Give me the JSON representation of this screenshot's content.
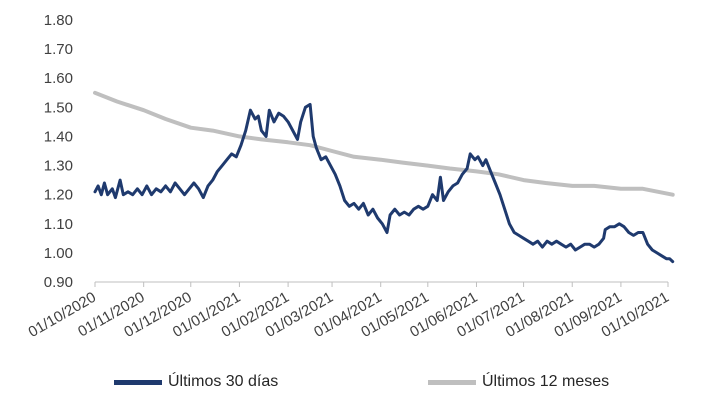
{
  "chart_data": {
    "type": "line",
    "title": "",
    "xlabel": "",
    "ylabel": "",
    "ylim": [
      0.9,
      1.8
    ],
    "yticks": [
      "0.90",
      "1.00",
      "1.10",
      "1.20",
      "1.30",
      "1.40",
      "1.50",
      "1.60",
      "1.70",
      "1.80"
    ],
    "xlim": [
      "01/10/2020",
      "01/10/2021"
    ],
    "xticks": [
      "01/10/2020",
      "01/11/2020",
      "01/12/2020",
      "01/01/2021",
      "01/02/2021",
      "01/03/2021",
      "01/04/2021",
      "01/05/2021",
      "01/06/2021",
      "01/07/2021",
      "01/08/2021",
      "01/09/2021",
      "01/10/2021"
    ],
    "grid": false,
    "legend_position": "bottom",
    "series": [
      {
        "name": "Últimos 30 días",
        "color": "#1f3a6e",
        "points": [
          [
            "01/10/2020",
            1.21
          ],
          [
            "03/10/2020",
            1.23
          ],
          [
            "05/10/2020",
            1.2
          ],
          [
            "07/10/2020",
            1.24
          ],
          [
            "09/10/2020",
            1.2
          ],
          [
            "12/10/2020",
            1.22
          ],
          [
            "14/10/2020",
            1.19
          ],
          [
            "17/10/2020",
            1.25
          ],
          [
            "19/10/2020",
            1.2
          ],
          [
            "22/10/2020",
            1.21
          ],
          [
            "25/10/2020",
            1.2
          ],
          [
            "28/10/2020",
            1.22
          ],
          [
            "31/10/2020",
            1.2
          ],
          [
            "03/11/2020",
            1.23
          ],
          [
            "06/11/2020",
            1.2
          ],
          [
            "09/11/2020",
            1.22
          ],
          [
            "12/11/2020",
            1.21
          ],
          [
            "15/11/2020",
            1.23
          ],
          [
            "18/11/2020",
            1.21
          ],
          [
            "21/11/2020",
            1.24
          ],
          [
            "24/11/2020",
            1.22
          ],
          [
            "27/11/2020",
            1.2
          ],
          [
            "30/11/2020",
            1.22
          ],
          [
            "03/12/2020",
            1.24
          ],
          [
            "06/12/2020",
            1.22
          ],
          [
            "09/12/2020",
            1.19
          ],
          [
            "12/12/2020",
            1.23
          ],
          [
            "15/12/2020",
            1.25
          ],
          [
            "18/12/2020",
            1.28
          ],
          [
            "21/12/2020",
            1.3
          ],
          [
            "24/12/2020",
            1.32
          ],
          [
            "27/12/2020",
            1.34
          ],
          [
            "30/12/2020",
            1.33
          ],
          [
            "02/01/2021",
            1.37
          ],
          [
            "05/01/2021",
            1.42
          ],
          [
            "08/01/2021",
            1.49
          ],
          [
            "11/01/2021",
            1.46
          ],
          [
            "13/01/2021",
            1.47
          ],
          [
            "15/01/2021",
            1.42
          ],
          [
            "18/01/2021",
            1.4
          ],
          [
            "20/01/2021",
            1.49
          ],
          [
            "23/01/2021",
            1.45
          ],
          [
            "26/01/2021",
            1.48
          ],
          [
            "29/01/2021",
            1.47
          ],
          [
            "01/02/2021",
            1.45
          ],
          [
            "04/02/2021",
            1.42
          ],
          [
            "07/02/2021",
            1.39
          ],
          [
            "09/02/2021",
            1.45
          ],
          [
            "12/02/2021",
            1.5
          ],
          [
            "15/02/2021",
            1.51
          ],
          [
            "17/02/2021",
            1.4
          ],
          [
            "19/02/2021",
            1.36
          ],
          [
            "22/02/2021",
            1.32
          ],
          [
            "25/02/2021",
            1.33
          ],
          [
            "28/02/2021",
            1.3
          ],
          [
            "03/03/2021",
            1.27
          ],
          [
            "06/03/2021",
            1.23
          ],
          [
            "09/03/2021",
            1.18
          ],
          [
            "12/03/2021",
            1.16
          ],
          [
            "15/03/2021",
            1.17
          ],
          [
            "18/03/2021",
            1.15
          ],
          [
            "21/03/2021",
            1.17
          ],
          [
            "24/03/2021",
            1.13
          ],
          [
            "27/03/2021",
            1.15
          ],
          [
            "30/03/2021",
            1.12
          ],
          [
            "02/04/2021",
            1.1
          ],
          [
            "05/04/2021",
            1.07
          ],
          [
            "07/04/2021",
            1.13
          ],
          [
            "10/04/2021",
            1.15
          ],
          [
            "13/04/2021",
            1.13
          ],
          [
            "16/04/2021",
            1.14
          ],
          [
            "19/04/2021",
            1.13
          ],
          [
            "22/04/2021",
            1.15
          ],
          [
            "25/04/2021",
            1.16
          ],
          [
            "28/04/2021",
            1.15
          ],
          [
            "01/05/2021",
            1.16
          ],
          [
            "04/05/2021",
            1.2
          ],
          [
            "07/05/2021",
            1.18
          ],
          [
            "09/05/2021",
            1.26
          ],
          [
            "11/05/2021",
            1.18
          ],
          [
            "14/05/2021",
            1.21
          ],
          [
            "17/05/2021",
            1.23
          ],
          [
            "20/05/2021",
            1.24
          ],
          [
            "23/05/2021",
            1.27
          ],
          [
            "26/05/2021",
            1.29
          ],
          [
            "28/05/2021",
            1.34
          ],
          [
            "31/05/2021",
            1.32
          ],
          [
            "02/06/2021",
            1.33
          ],
          [
            "05/06/2021",
            1.3
          ],
          [
            "07/06/2021",
            1.32
          ],
          [
            "10/06/2021",
            1.28
          ],
          [
            "13/06/2021",
            1.24
          ],
          [
            "16/06/2021",
            1.2
          ],
          [
            "19/06/2021",
            1.15
          ],
          [
            "22/06/2021",
            1.1
          ],
          [
            "25/06/2021",
            1.07
          ],
          [
            "28/06/2021",
            1.06
          ],
          [
            "01/07/2021",
            1.05
          ],
          [
            "04/07/2021",
            1.04
          ],
          [
            "07/07/2021",
            1.03
          ],
          [
            "10/07/2021",
            1.04
          ],
          [
            "13/07/2021",
            1.02
          ],
          [
            "16/07/2021",
            1.04
          ],
          [
            "19/07/2021",
            1.03
          ],
          [
            "22/07/2021",
            1.04
          ],
          [
            "25/07/2021",
            1.03
          ],
          [
            "28/07/2021",
            1.02
          ],
          [
            "31/07/2021",
            1.03
          ],
          [
            "03/08/2021",
            1.01
          ],
          [
            "06/08/2021",
            1.02
          ],
          [
            "09/08/2021",
            1.03
          ],
          [
            "12/08/2021",
            1.03
          ],
          [
            "15/08/2021",
            1.02
          ],
          [
            "18/08/2021",
            1.03
          ],
          [
            "21/08/2021",
            1.05
          ],
          [
            "22/08/2021",
            1.08
          ],
          [
            "25/08/2021",
            1.09
          ],
          [
            "28/08/2021",
            1.09
          ],
          [
            "31/08/2021",
            1.1
          ],
          [
            "03/09/2021",
            1.09
          ],
          [
            "06/09/2021",
            1.07
          ],
          [
            "09/09/2021",
            1.06
          ],
          [
            "12/09/2021",
            1.07
          ],
          [
            "15/09/2021",
            1.07
          ],
          [
            "18/09/2021",
            1.03
          ],
          [
            "21/09/2021",
            1.01
          ],
          [
            "24/09/2021",
            1.0
          ],
          [
            "27/09/2021",
            0.99
          ],
          [
            "30/09/2021",
            0.98
          ],
          [
            "02/10/2021",
            0.98
          ],
          [
            "04/10/2021",
            0.97
          ]
        ]
      },
      {
        "name": "Últimos 12 meses",
        "color": "#bfbfbf",
        "points": [
          [
            "01/10/2020",
            1.55
          ],
          [
            "15/10/2020",
            1.52
          ],
          [
            "01/11/2020",
            1.49
          ],
          [
            "15/11/2020",
            1.46
          ],
          [
            "01/12/2020",
            1.43
          ],
          [
            "15/12/2020",
            1.42
          ],
          [
            "01/01/2021",
            1.4
          ],
          [
            "15/01/2021",
            1.39
          ],
          [
            "01/02/2021",
            1.38
          ],
          [
            "15/02/2021",
            1.37
          ],
          [
            "01/03/2021",
            1.35
          ],
          [
            "15/03/2021",
            1.33
          ],
          [
            "01/04/2021",
            1.32
          ],
          [
            "15/04/2021",
            1.31
          ],
          [
            "01/05/2021",
            1.3
          ],
          [
            "15/05/2021",
            1.29
          ],
          [
            "01/06/2021",
            1.28
          ],
          [
            "15/06/2021",
            1.27
          ],
          [
            "01/07/2021",
            1.25
          ],
          [
            "15/07/2021",
            1.24
          ],
          [
            "01/08/2021",
            1.23
          ],
          [
            "15/08/2021",
            1.23
          ],
          [
            "01/09/2021",
            1.22
          ],
          [
            "15/09/2021",
            1.22
          ],
          [
            "04/10/2021",
            1.2
          ]
        ]
      }
    ]
  }
}
